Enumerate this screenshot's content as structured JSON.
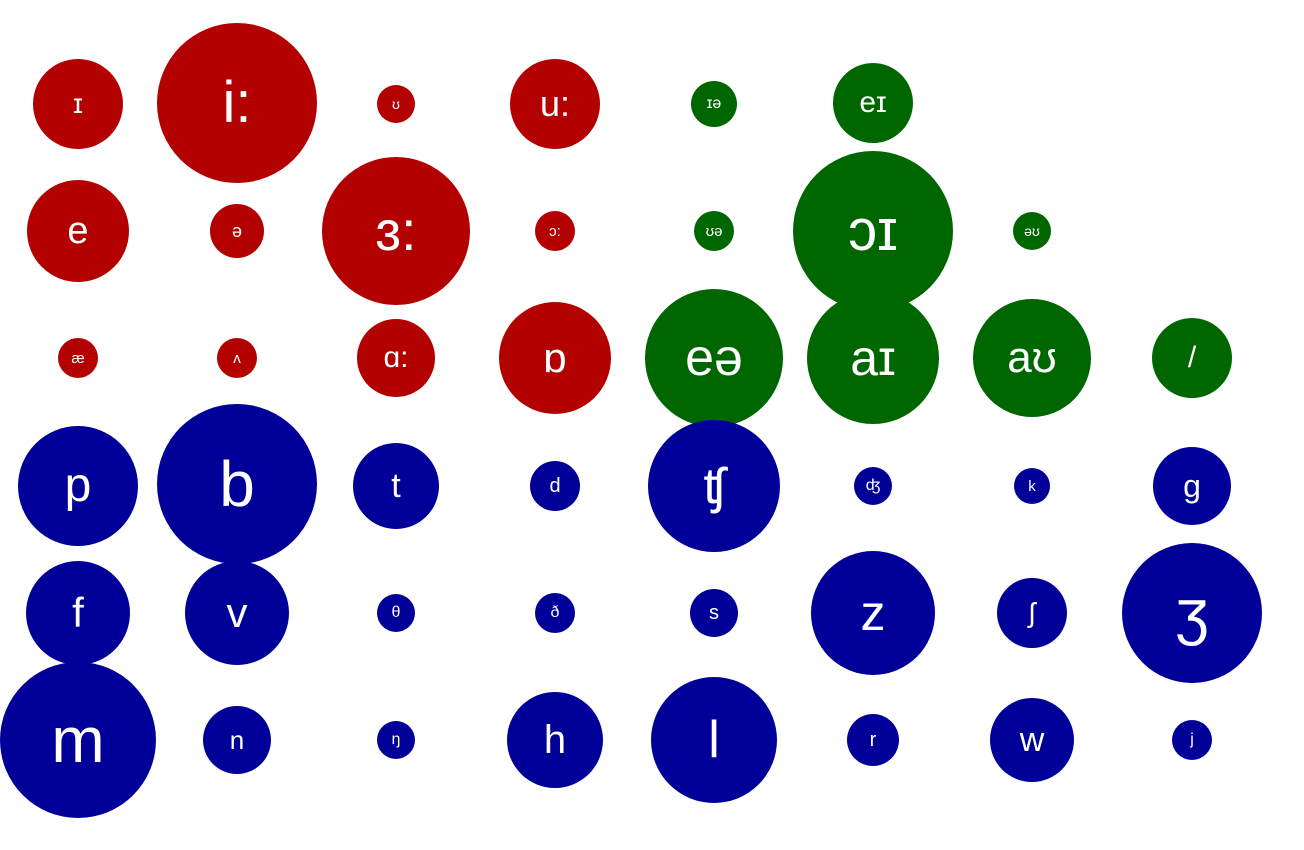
{
  "colors": {
    "vowel": "#b30000",
    "diphthong": "#006600",
    "consonant": "#000099"
  },
  "rows": [
    {
      "category": "vowel",
      "symbols": [
        "ɪ",
        "i:",
        "ʊ",
        "u:"
      ]
    },
    {
      "category": "diphthong",
      "symbols": [
        "ɪə",
        "eɪ"
      ]
    },
    {
      "category": "vowel",
      "symbols": [
        "e",
        "ə",
        "ɜ:",
        "ɔ:"
      ]
    },
    {
      "category": "diphthong",
      "symbols": [
        "ʊə",
        "ɔɪ",
        "əʊ"
      ]
    },
    {
      "category": "vowel",
      "symbols": [
        "æ",
        "ʌ",
        "ɑ:",
        "ɒ"
      ]
    },
    {
      "category": "diphthong",
      "symbols": [
        "eə",
        "aɪ",
        "aʊ",
        "/"
      ]
    },
    {
      "category": "consonant",
      "symbols": [
        "p",
        "b",
        "t",
        "d",
        "ʧ",
        "ʤ",
        "k",
        "g"
      ]
    },
    {
      "category": "consonant",
      "symbols": [
        "f",
        "v",
        "θ",
        "ð",
        "s",
        "z",
        "ʃ",
        "ʒ"
      ]
    },
    {
      "category": "consonant",
      "symbols": [
        "m",
        "n",
        "ŋ",
        "h",
        "l",
        "r",
        "w",
        "j"
      ]
    }
  ]
}
